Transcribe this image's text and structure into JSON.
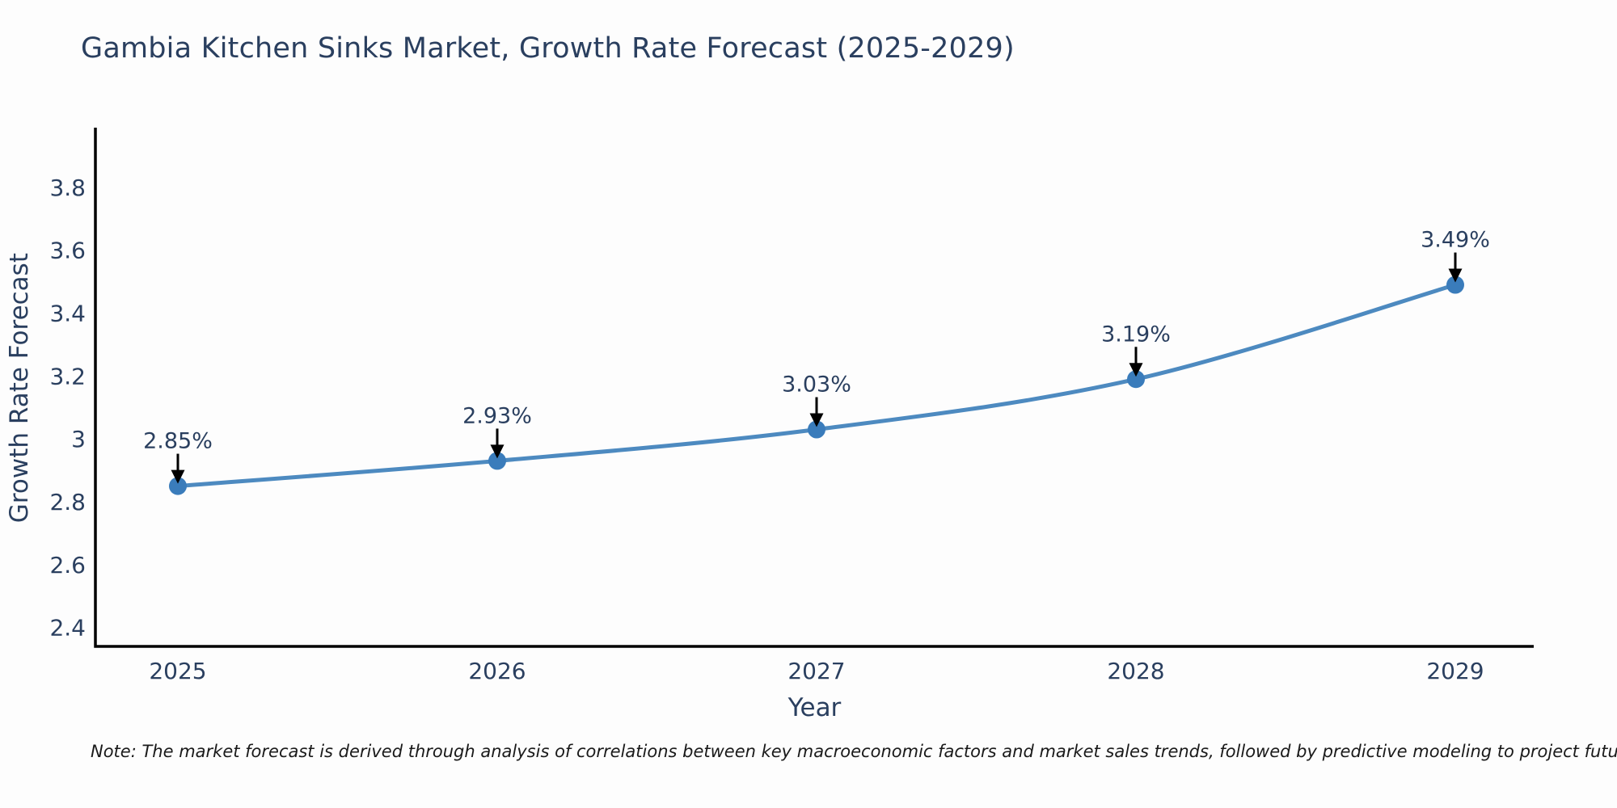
{
  "chart_data": {
    "type": "line",
    "title": "Gambia Kitchen Sinks Market, Growth Rate Forecast (2025-2029)",
    "xlabel": "Year",
    "ylabel": "Growth Rate Forecast",
    "categories": [
      "2025",
      "2026",
      "2027",
      "2028",
      "2029"
    ],
    "series": [
      {
        "name": "Growth Rate Forecast",
        "values": [
          2.85,
          2.93,
          3.03,
          3.19,
          3.49
        ],
        "point_labels": [
          "2.85%",
          "2.93%",
          "3.03%",
          "3.19%",
          "3.49%"
        ]
      }
    ],
    "yticks": [
      2.4,
      2.6,
      2.8,
      3,
      3.2,
      3.4,
      3.6,
      3.8
    ],
    "ytick_labels": [
      "2.4",
      "2.6",
      "2.8",
      "3",
      "3.2",
      "3.4",
      "3.6",
      "3.8"
    ],
    "ylim": [
      2.34,
      3.99
    ],
    "grid": false,
    "legend_position": "none",
    "marker_style": "circle-with-down-arrow-annotation",
    "line_color": "#4d8ac0",
    "marker_color": "#3a7cbb",
    "arrow_color": "#000000",
    "axis_color": "#000000",
    "text_color": "#2a3f5f",
    "background_color": "#fdfdfd",
    "note": "Note: The market forecast is derived through analysis of correlations between key macroeconomic factors and market sales trends, followed by predictive modeling to project future sales"
  }
}
